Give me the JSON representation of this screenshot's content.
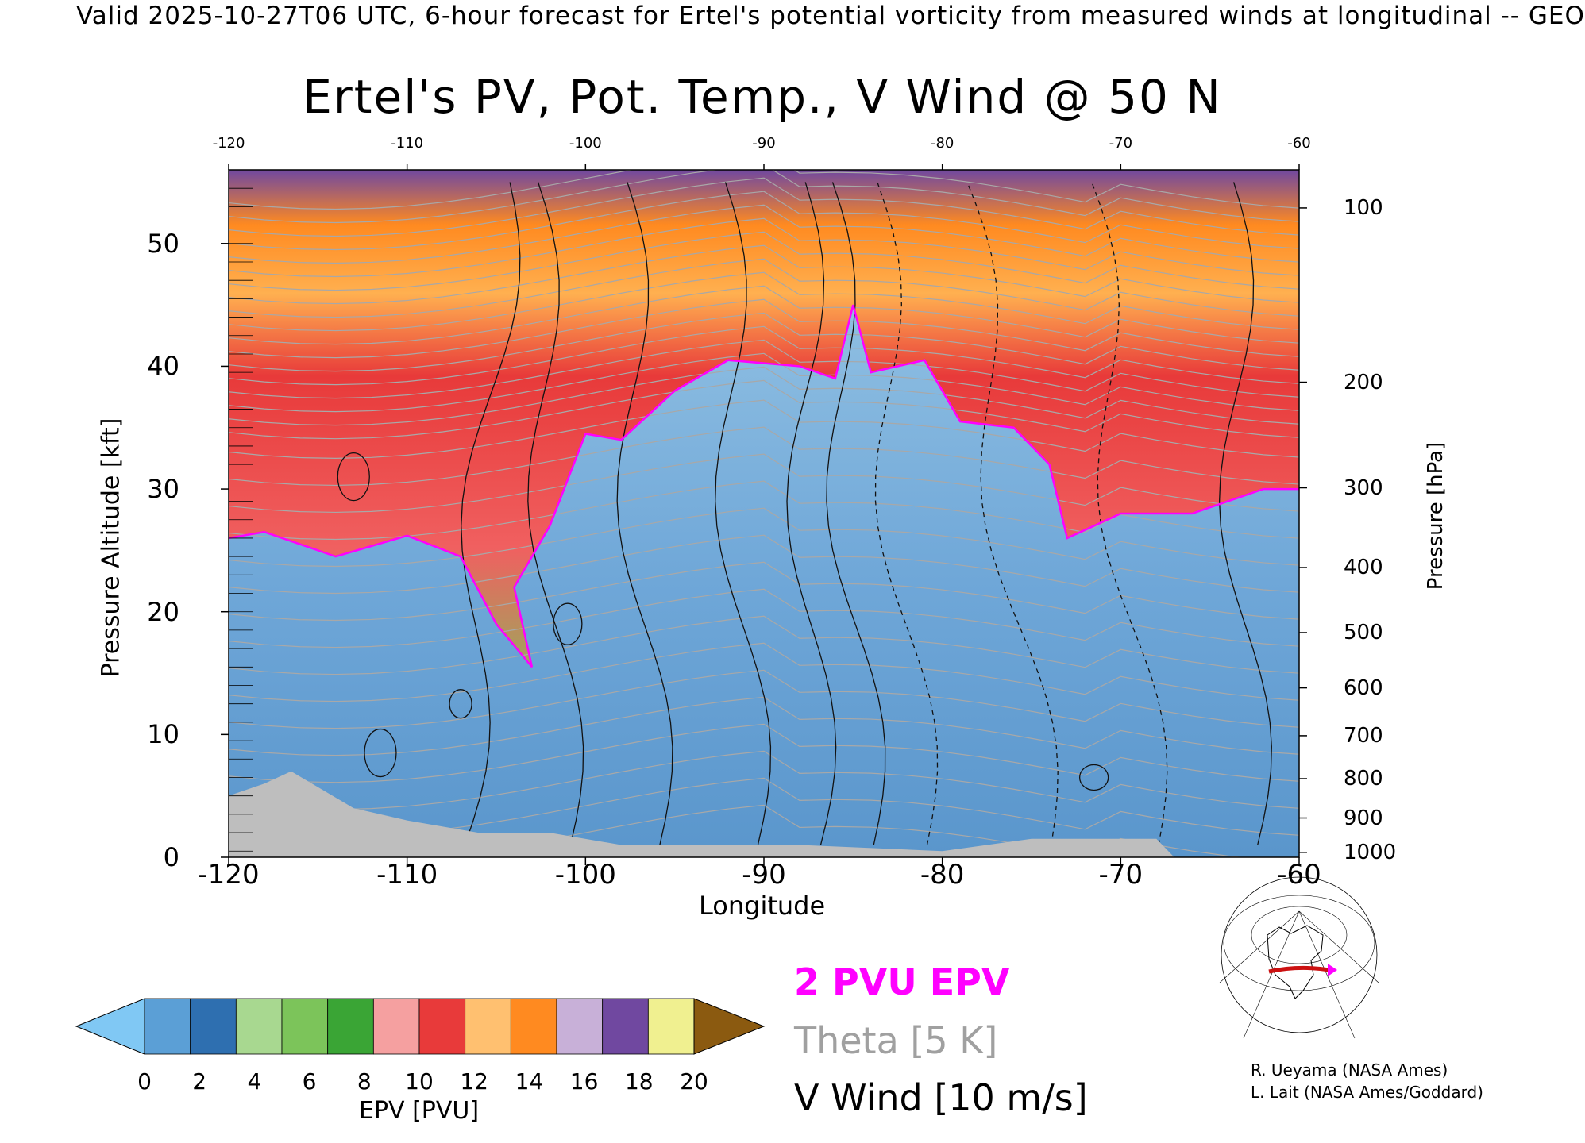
{
  "header": "Valid 2025-10-27T06 UTC, 6-hour forecast for Ertel's potential vorticity from measured winds at longitudinal -- GEO",
  "title": "Ertel's PV, Pot. Temp., V Wind @ 50 N",
  "legend": {
    "epv": "2 PVU EPV",
    "theta": "Theta [5 K]",
    "wind": "V Wind [10 m/s]"
  },
  "colorbar": {
    "label": "EPV [PVU]",
    "ticks": [
      "0",
      "2",
      "4",
      "6",
      "8",
      "10",
      "12",
      "14",
      "16",
      "18",
      "20"
    ],
    "colors": [
      "#80c8f4",
      "#5b9fd6",
      "#2e6fb0",
      "#a8d890",
      "#7cc45a",
      "#3aa535",
      "#f5a0a0",
      "#e83a3a",
      "#ffc070",
      "#ff8a20",
      "#c8b0d8",
      "#7048a0",
      "#f0f090",
      "#8b5a10"
    ]
  },
  "credits": {
    "line1": "R. Ueyama (NASA Ames)",
    "line2": "L. Lait (NASA Ames/Goddard)"
  },
  "chart_data": {
    "type": "heatmap",
    "title": "Ertel's PV, Pot. Temp., V Wind @ 50 N",
    "xlabel": "Longitude",
    "ylabel": "Pressure Altitude [kft]",
    "ylabel_right": "Pressure [hPa]",
    "xlim": [
      -120,
      -60
    ],
    "ylim": [
      0,
      56
    ],
    "x_ticks": [
      "-120",
      "-110",
      "-100",
      "-90",
      "-80",
      "-70",
      "-60"
    ],
    "top_ticks": [
      "-120",
      "-110",
      "-100",
      "-90",
      "-80",
      "-70",
      "-60"
    ],
    "y_ticks": [
      0,
      10,
      20,
      30,
      40,
      50
    ],
    "right_ticks": [
      {
        "label": "100",
        "kft": 52.9
      },
      {
        "label": "200",
        "kft": 38.7
      },
      {
        "label": "300",
        "kft": 30.1
      },
      {
        "label": "400",
        "kft": 23.6
      },
      {
        "label": "500",
        "kft": 18.3
      },
      {
        "label": "600",
        "kft": 13.8
      },
      {
        "label": "700",
        "kft": 9.9
      },
      {
        "label": "800",
        "kft": 6.4
      },
      {
        "label": "900",
        "kft": 3.2
      },
      {
        "label": "1000",
        "kft": 0.4
      }
    ],
    "pv2_tropopause": [
      {
        "lon": -120,
        "kft": 26
      },
      {
        "lon": -118,
        "kft": 26.5
      },
      {
        "lon": -114,
        "kft": 24.5
      },
      {
        "lon": -110,
        "kft": 26.2
      },
      {
        "lon": -107,
        "kft": 24.5
      },
      {
        "lon": -105,
        "kft": 19
      },
      {
        "lon": -103,
        "kft": 15.5
      },
      {
        "lon": -104,
        "kft": 22
      },
      {
        "lon": -102,
        "kft": 27
      },
      {
        "lon": -100,
        "kft": 34.5
      },
      {
        "lon": -98,
        "kft": 34
      },
      {
        "lon": -95,
        "kft": 38
      },
      {
        "lon": -92,
        "kft": 40.5
      },
      {
        "lon": -88,
        "kft": 40
      },
      {
        "lon": -86,
        "kft": 39
      },
      {
        "lon": -85,
        "kft": 45
      },
      {
        "lon": -84,
        "kft": 39.5
      },
      {
        "lon": -81,
        "kft": 40.5
      },
      {
        "lon": -79,
        "kft": 35.5
      },
      {
        "lon": -76,
        "kft": 35
      },
      {
        "lon": -74,
        "kft": 32
      },
      {
        "lon": -73,
        "kft": 26
      },
      {
        "lon": -70,
        "kft": 28
      },
      {
        "lon": -66,
        "kft": 28
      },
      {
        "lon": -62,
        "kft": 30
      },
      {
        "lon": -60,
        "kft": 30
      }
    ],
    "terrain_kft": [
      {
        "lon": -120,
        "kft": 5
      },
      {
        "lon": -118,
        "kft": 6
      },
      {
        "lon": -116.5,
        "kft": 7
      },
      {
        "lon": -113,
        "kft": 4
      },
      {
        "lon": -110,
        "kft": 3
      },
      {
        "lon": -106,
        "kft": 2
      },
      {
        "lon": -102,
        "kft": 2
      },
      {
        "lon": -98,
        "kft": 1
      },
      {
        "lon": -88,
        "kft": 1
      },
      {
        "lon": -80,
        "kft": 0.5
      },
      {
        "lon": -75,
        "kft": 1.5
      },
      {
        "lon": -68,
        "kft": 1.5
      },
      {
        "lon": -67,
        "kft": 0
      }
    ]
  }
}
